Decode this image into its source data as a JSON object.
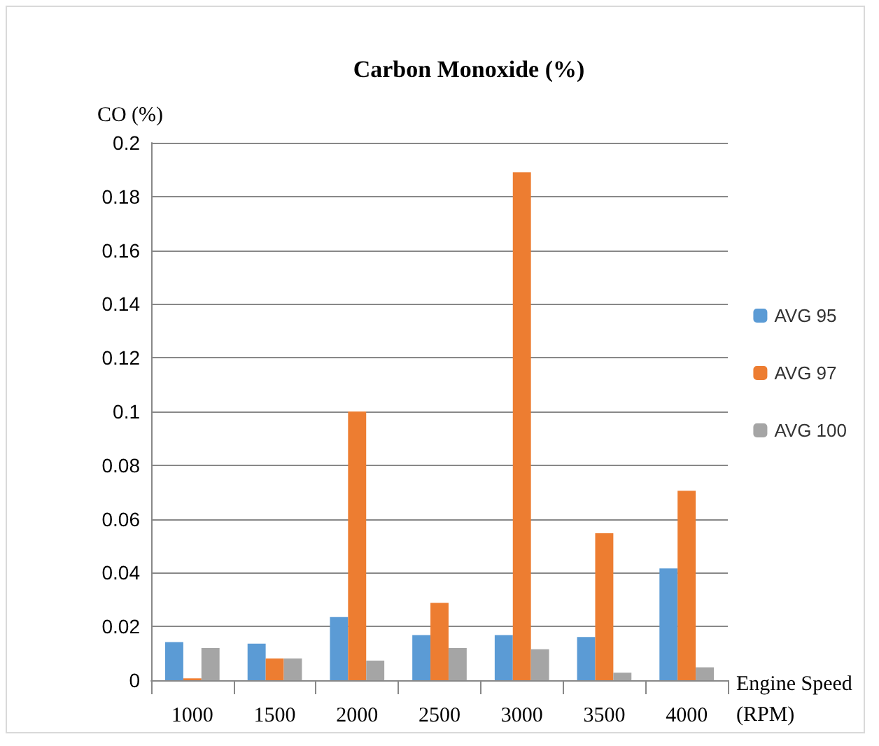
{
  "chart_data": {
    "type": "bar",
    "title": "Carbon Monoxide (%)",
    "ylabel": "CO (%)",
    "xlabel": "Engine Speed\n(RPM)",
    "categories": [
      "1000",
      "1500",
      "2000",
      "2500",
      "3000",
      "3500",
      "4000"
    ],
    "series": [
      {
        "name": "AVG 95",
        "color": "#5b9bd5",
        "values": [
          0.0142,
          0.0136,
          0.0235,
          0.0168,
          0.0168,
          0.0161,
          0.0416
        ]
      },
      {
        "name": "AVG 97",
        "color": "#ed7d31",
        "values": [
          0.0007,
          0.0081,
          0.1,
          0.0288,
          0.189,
          0.0547,
          0.0705
        ]
      },
      {
        "name": "AVG 100",
        "color": "#a5a5a5",
        "values": [
          0.012,
          0.0081,
          0.0073,
          0.012,
          0.0115,
          0.0028,
          0.0048
        ]
      }
    ],
    "ylim": [
      0,
      0.2
    ],
    "yticks": [
      0,
      0.02,
      0.04,
      0.06,
      0.08,
      0.1,
      0.12,
      0.14,
      0.16,
      0.18,
      0.2
    ],
    "grid": "y",
    "legend": "right"
  }
}
